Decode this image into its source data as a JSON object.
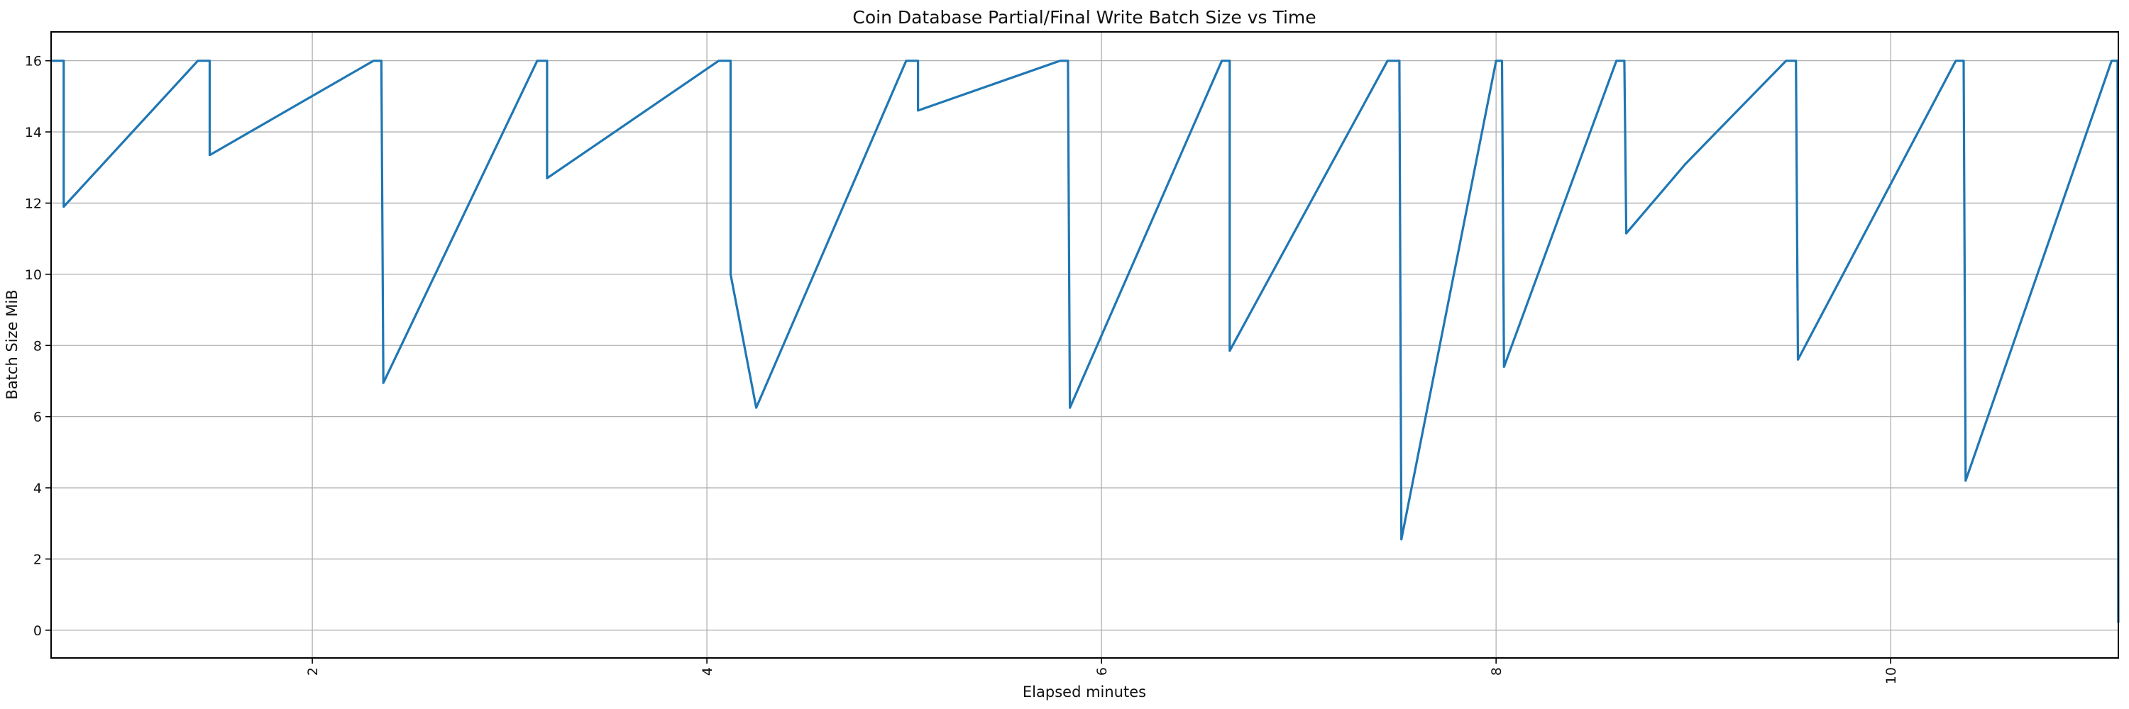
{
  "chart_data": {
    "type": "line",
    "title": "Coin Database Partial/Final Write Batch Size vs Time",
    "xlabel": "Elapsed minutes",
    "ylabel": "Batch Size MiB",
    "line_color": "#1f77b4",
    "grid_color": "#b0b0b0",
    "spine_color": "#000000",
    "grid": "on",
    "legend": "none",
    "x_ticks": [
      2,
      4,
      6,
      8,
      10
    ],
    "y_ticks": [
      0,
      2,
      4,
      6,
      8,
      10,
      12,
      14,
      16
    ],
    "x_tick_rotation": -90,
    "xlim": [
      0.676,
      11.154
    ],
    "ylim": [
      -0.78,
      16.81
    ],
    "series": [
      {
        "name": "batch_size_mib",
        "points": [
          [
            0.676,
            16
          ],
          [
            0.74,
            16
          ],
          [
            0.74,
            11.9
          ],
          [
            1.42,
            16
          ],
          [
            1.48,
            16
          ],
          [
            1.48,
            13.35
          ],
          [
            2.31,
            16
          ],
          [
            2.35,
            16
          ],
          [
            2.36,
            6.95
          ],
          [
            3.14,
            16
          ],
          [
            3.19,
            16
          ],
          [
            3.19,
            12.7
          ],
          [
            4.06,
            16
          ],
          [
            4.12,
            16
          ],
          [
            4.12,
            10.0
          ],
          [
            4.25,
            6.25
          ],
          [
            5.01,
            16
          ],
          [
            5.07,
            16
          ],
          [
            5.07,
            14.6
          ],
          [
            5.79,
            16
          ],
          [
            5.83,
            16
          ],
          [
            5.84,
            6.25
          ],
          [
            6.61,
            16
          ],
          [
            6.65,
            16
          ],
          [
            6.65,
            7.85
          ],
          [
            7.45,
            16
          ],
          [
            7.51,
            16
          ],
          [
            7.52,
            2.55
          ],
          [
            8.0,
            16
          ],
          [
            8.03,
            16
          ],
          [
            8.04,
            7.4
          ],
          [
            8.61,
            16
          ],
          [
            8.65,
            16
          ],
          [
            8.66,
            11.15
          ],
          [
            8.96,
            13.1
          ],
          [
            9.47,
            16
          ],
          [
            9.52,
            16
          ],
          [
            9.53,
            7.6
          ],
          [
            10.33,
            16
          ],
          [
            10.37,
            16
          ],
          [
            10.38,
            4.2
          ],
          [
            11.12,
            16
          ],
          [
            11.15,
            16
          ],
          [
            11.154,
            0.2
          ]
        ]
      }
    ]
  }
}
